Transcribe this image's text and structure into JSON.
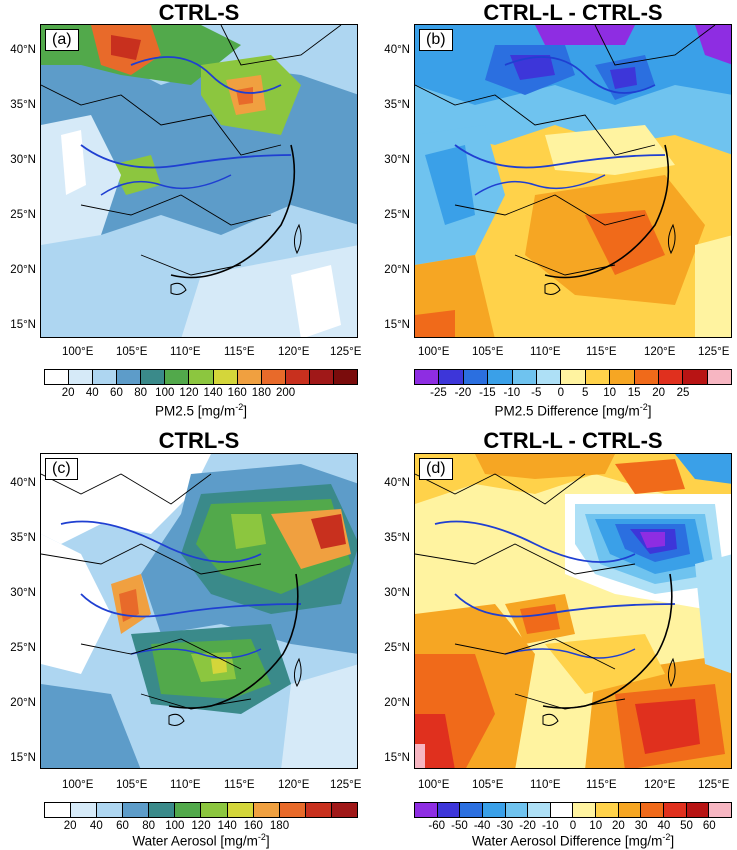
{
  "panels": {
    "a": {
      "title": "CTRL-S",
      "tag": "(a)",
      "colorbar_labels": [
        "20",
        "40",
        "60",
        "80",
        "100",
        "120",
        "140",
        "160",
        "180",
        "200"
      ],
      "colorbar_title": "PM2.5 [mg/m",
      "colorbar_title_sup": "-2",
      "colorbar_title_end": "]"
    },
    "b": {
      "title": "CTRL-L - CTRL-S",
      "tag": "(b)",
      "colorbar_labels": [
        "-25",
        "-20",
        "-15",
        "-10",
        "-5",
        "0",
        "5",
        "10",
        "15",
        "20",
        "25"
      ],
      "colorbar_title": "PM2.5 Difference [mg/m",
      "colorbar_title_sup": "-2",
      "colorbar_title_end": "]"
    },
    "c": {
      "title": "CTRL-S",
      "tag": "(c)",
      "colorbar_labels": [
        "20",
        "40",
        "60",
        "80",
        "100",
        "120",
        "140",
        "160",
        "180"
      ],
      "colorbar_title": "Water Aerosol [mg/m",
      "colorbar_title_sup": "-2",
      "colorbar_title_end": "]"
    },
    "d": {
      "title": "CTRL-L - CTRL-S",
      "tag": "(d)",
      "colorbar_labels": [
        "-60",
        "-50",
        "-40",
        "-30",
        "-20",
        "-10",
        "0",
        "10",
        "20",
        "30",
        "40",
        "50",
        "60"
      ],
      "colorbar_title": "Water Aerosol Difference [mg/m",
      "colorbar_title_sup": "-2",
      "colorbar_title_end": "]"
    }
  },
  "axes": {
    "lat_labels": [
      "40°N",
      "35°N",
      "30°N",
      "25°N",
      "20°N",
      "15°N"
    ],
    "lon_labels": [
      "100°E",
      "105°E",
      "110°E",
      "115°E",
      "120°E",
      "125°E"
    ]
  },
  "colors": {
    "seq_a": [
      "#ffffff",
      "#d6eaf8",
      "#aed6f1",
      "#5d9cc9",
      "#3a8a8a",
      "#52a94b",
      "#8cc63f",
      "#d4d63a",
      "#f0a040",
      "#e86a2a",
      "#c8301e",
      "#a01818",
      "#7a0c0c"
    ],
    "div_b": [
      "#8e2de2",
      "#3d36d9",
      "#2b6fe0",
      "#3aa0e8",
      "#6fc3ef",
      "#aee0f6",
      "#fff3a0",
      "#ffd24a",
      "#f6a623",
      "#f06a1a",
      "#e0301e",
      "#b81414",
      "#f7b6c2"
    ],
    "seq_c": [
      "#ffffff",
      "#d6eaf8",
      "#aed6f1",
      "#5d9cc9",
      "#3a8a8a",
      "#52a94b",
      "#8cc63f",
      "#d4d63a",
      "#f0a040",
      "#e86a2a",
      "#c8301e",
      "#a01818"
    ],
    "div_d": [
      "#8e2de2",
      "#3d36d9",
      "#2b6fe0",
      "#3aa0e8",
      "#6fc3ef",
      "#aee0f6",
      "#ffffff",
      "#fff3a0",
      "#ffd24a",
      "#f6a623",
      "#f06a1a",
      "#e0301e",
      "#b81414",
      "#f7b6c2"
    ],
    "river": "#1f3fd1",
    "border": "#000000"
  }
}
